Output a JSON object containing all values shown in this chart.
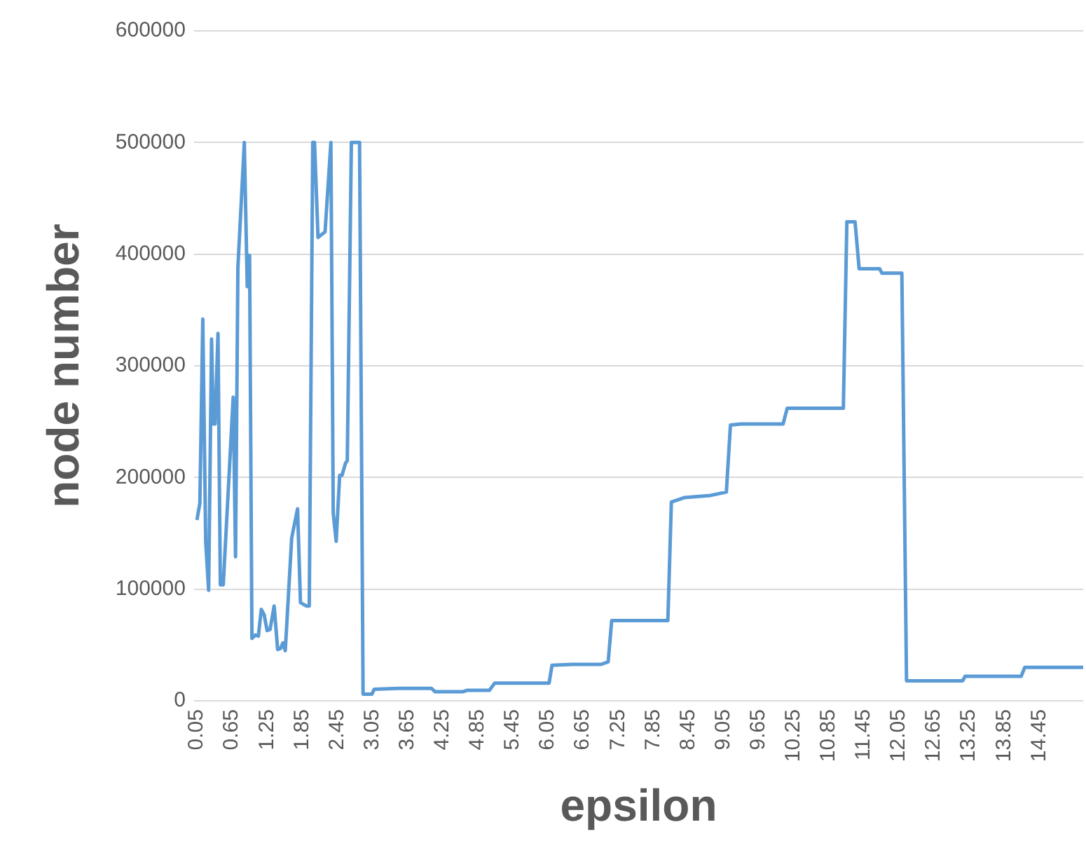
{
  "chart_data": {
    "type": "line",
    "xlabel": "epsilon",
    "ylabel": "node number",
    "xlim": [
      0.0,
      15.2
    ],
    "ylim": [
      0,
      600000
    ],
    "xticks": [
      0.05,
      0.65,
      1.25,
      1.85,
      2.45,
      3.05,
      3.65,
      4.25,
      4.85,
      5.45,
      6.05,
      6.65,
      7.25,
      7.85,
      8.45,
      9.05,
      9.65,
      10.25,
      10.85,
      11.45,
      12.05,
      12.65,
      13.25,
      13.85,
      14.45
    ],
    "yticks": [
      0,
      100000,
      200000,
      300000,
      400000,
      500000,
      600000
    ],
    "grid": "y",
    "legend": false,
    "marker": "none",
    "line_style": "solid",
    "series": [
      {
        "color": "#5b9bd5",
        "x": [
          0.05,
          0.1,
          0.15,
          0.2,
          0.25,
          0.3,
          0.33,
          0.36,
          0.41,
          0.45,
          0.5,
          0.67,
          0.71,
          0.75,
          0.86,
          0.91,
          0.95,
          0.99,
          1.05,
          1.1,
          1.15,
          1.2,
          1.25,
          1.3,
          1.37,
          1.43,
          1.48,
          1.52,
          1.56,
          1.67,
          1.77,
          1.82,
          1.92,
          1.97,
          2.03,
          2.06,
          2.12,
          2.24,
          2.34,
          2.38,
          2.43,
          2.49,
          2.53,
          2.59,
          2.62,
          2.69,
          2.83,
          2.89,
          3.04,
          3.08,
          3.49,
          4.06,
          4.12,
          4.59,
          4.67,
          5.05,
          5.14,
          6.07,
          6.12,
          6.47,
          6.96,
          7.08,
          7.14,
          8.1,
          8.16,
          8.38,
          8.83,
          9.1,
          9.17,
          9.35,
          10.07,
          10.14,
          11.1,
          11.16,
          11.3,
          11.37,
          11.72,
          11.76,
          12.1,
          12.18,
          13.14,
          13.18,
          14.14,
          14.2,
          15.2
        ],
        "values": [
          162000,
          177000,
          342000,
          142000,
          99000,
          324000,
          248000,
          248000,
          329000,
          104000,
          104000,
          272000,
          129000,
          388000,
          500000,
          371000,
          399000,
          56000,
          59000,
          58000,
          82000,
          77000,
          63000,
          64000,
          85000,
          46000,
          47000,
          52000,
          45000,
          146000,
          172000,
          88000,
          85000,
          85000,
          500000,
          500000,
          415000,
          420000,
          500000,
          168000,
          143000,
          202000,
          202000,
          213000,
          215000,
          500000,
          500000,
          6000,
          6000,
          10400,
          11200,
          11200,
          8200,
          8200,
          9500,
          9500,
          16000,
          16000,
          32000,
          32700,
          32700,
          35000,
          72000,
          72000,
          178000,
          182000,
          184000,
          187000,
          247000,
          248000,
          248000,
          262000,
          262000,
          429000,
          429000,
          387000,
          387000,
          383000,
          383000,
          18000,
          18000,
          22000,
          22000,
          30000,
          30000
        ]
      }
    ]
  }
}
